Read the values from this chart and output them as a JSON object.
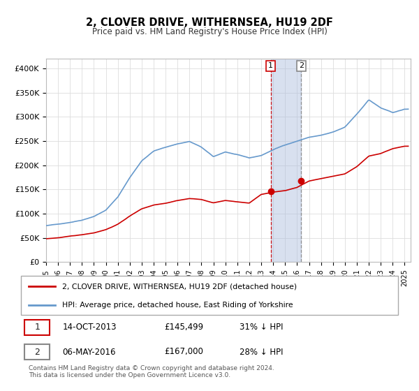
{
  "title": "2, CLOVER DRIVE, WITHERNSEA, HU19 2DF",
  "subtitle": "Price paid vs. HM Land Registry's House Price Index (HPI)",
  "ylim": [
    0,
    420000
  ],
  "yticks": [
    0,
    50000,
    100000,
    150000,
    200000,
    250000,
    300000,
    350000,
    400000
  ],
  "ytick_labels": [
    "£0",
    "£50K",
    "£100K",
    "£150K",
    "£200K",
    "£250K",
    "£300K",
    "£350K",
    "£400K"
  ],
  "line1_color": "#cc0000",
  "line2_color": "#6699cc",
  "transaction1_date": 2013.79,
  "transaction1_value": 145499,
  "transaction2_date": 2016.35,
  "transaction2_value": 167000,
  "vline_color": "#cc0000",
  "shade_color": "#aabbdd",
  "legend_label1": "2, CLOVER DRIVE, WITHERNSEA, HU19 2DF (detached house)",
  "legend_label2": "HPI: Average price, detached house, East Riding of Yorkshire",
  "table_row1": [
    "1",
    "14-OCT-2013",
    "£145,499",
    "31% ↓ HPI"
  ],
  "table_row2": [
    "2",
    "06-MAY-2016",
    "£167,000",
    "28% ↓ HPI"
  ],
  "footnote": "Contains HM Land Registry data © Crown copyright and database right 2024.\nThis data is licensed under the Open Government Licence v3.0.",
  "background_color": "#ffffff",
  "grid_color": "#dddddd",
  "hpi_keypoints": [
    [
      1995,
      75000
    ],
    [
      1996,
      78000
    ],
    [
      1997,
      82000
    ],
    [
      1998,
      87000
    ],
    [
      1999,
      95000
    ],
    [
      2000,
      108000
    ],
    [
      2001,
      135000
    ],
    [
      2002,
      175000
    ],
    [
      2003,
      210000
    ],
    [
      2004,
      230000
    ],
    [
      2005,
      238000
    ],
    [
      2006,
      245000
    ],
    [
      2007,
      250000
    ],
    [
      2008,
      238000
    ],
    [
      2009,
      218000
    ],
    [
      2010,
      228000
    ],
    [
      2011,
      222000
    ],
    [
      2012,
      215000
    ],
    [
      2013,
      220000
    ],
    [
      2014,
      232000
    ],
    [
      2015,
      242000
    ],
    [
      2016,
      250000
    ],
    [
      2017,
      258000
    ],
    [
      2018,
      262000
    ],
    [
      2019,
      268000
    ],
    [
      2020,
      278000
    ],
    [
      2021,
      305000
    ],
    [
      2022,
      335000
    ],
    [
      2023,
      318000
    ],
    [
      2024,
      308000
    ],
    [
      2025,
      315000
    ]
  ],
  "prop_keypoints": [
    [
      1995,
      48000
    ],
    [
      1996,
      50000
    ],
    [
      1997,
      53000
    ],
    [
      1998,
      56000
    ],
    [
      1999,
      60000
    ],
    [
      2000,
      67000
    ],
    [
      2001,
      78000
    ],
    [
      2002,
      95000
    ],
    [
      2003,
      110000
    ],
    [
      2004,
      118000
    ],
    [
      2005,
      122000
    ],
    [
      2006,
      128000
    ],
    [
      2007,
      132000
    ],
    [
      2008,
      130000
    ],
    [
      2009,
      123000
    ],
    [
      2010,
      128000
    ],
    [
      2011,
      125000
    ],
    [
      2012,
      122000
    ],
    [
      2013,
      140000
    ],
    [
      2014,
      145000
    ],
    [
      2015,
      148000
    ],
    [
      2016,
      155000
    ],
    [
      2017,
      168000
    ],
    [
      2018,
      173000
    ],
    [
      2019,
      178000
    ],
    [
      2020,
      183000
    ],
    [
      2021,
      198000
    ],
    [
      2022,
      220000
    ],
    [
      2023,
      225000
    ],
    [
      2024,
      235000
    ],
    [
      2025,
      240000
    ]
  ]
}
